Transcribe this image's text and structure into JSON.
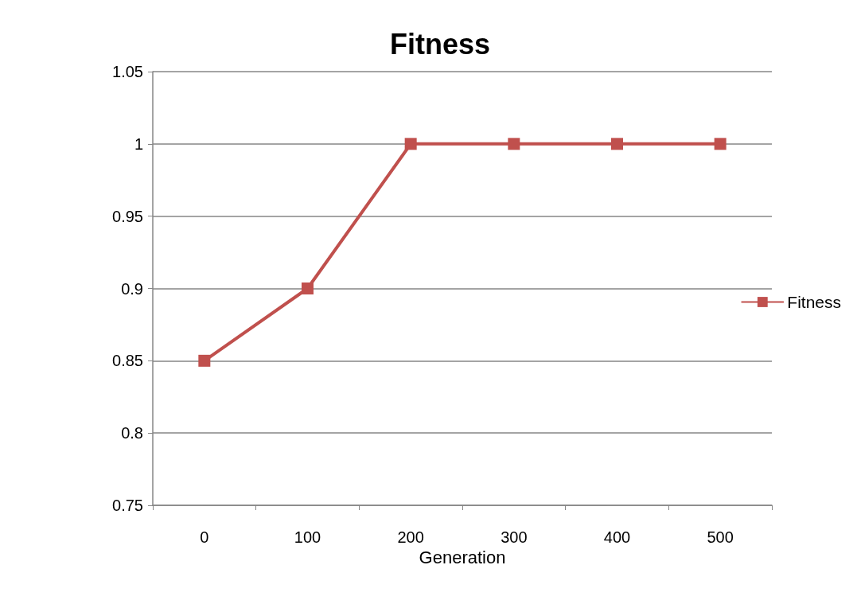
{
  "chart_data": {
    "type": "line",
    "title": "Fitness",
    "xlabel": "Generation",
    "categories": [
      "0",
      "100",
      "200",
      "300",
      "400",
      "500"
    ],
    "series": [
      {
        "name": "Fitness",
        "color": "#c0504d",
        "values": [
          0.85,
          0.9,
          1,
          1,
          1,
          1
        ]
      }
    ],
    "ylim": [
      0.75,
      1.05
    ],
    "yticks": [
      0.75,
      0.8,
      0.85,
      0.9,
      0.95,
      1,
      1.05
    ],
    "grid": "y",
    "legend": "right",
    "marker": "square",
    "line_style": "solid"
  }
}
